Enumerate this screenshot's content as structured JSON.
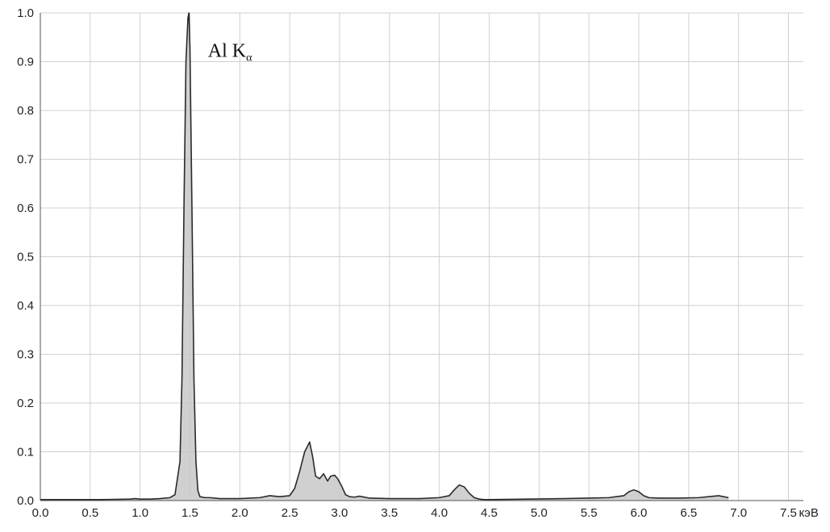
{
  "chart_data": {
    "type": "area",
    "title": "",
    "xlabel": "",
    "ylabel": "",
    "x_unit": "кэВ",
    "xlim": [
      0,
      7.65
    ],
    "ylim": [
      0,
      1.0
    ],
    "grid": true,
    "xticks": [
      "0.0",
      "0.5",
      "1.0",
      "1.5",
      "2.0",
      "2.5",
      "3.0",
      "3.5",
      "4.0",
      "4.5",
      "5.0",
      "5.5",
      "6.0",
      "6.5",
      "7.0",
      "7.5"
    ],
    "yticks": [
      "0.0",
      "0.1",
      "0.2",
      "0.3",
      "0.4",
      "0.5",
      "0.6",
      "0.7",
      "0.8",
      "0.9",
      "1.0"
    ],
    "annotation": {
      "main": "Al K",
      "subscript": "α",
      "x": 1.68,
      "y": 0.91
    },
    "colors": {
      "line": "#2a2a2a",
      "fill": "#c8c8c8",
      "grid": "#d0d0d0"
    },
    "series": [
      {
        "x": [
          0.0,
          0.3,
          0.6,
          0.9,
          0.95,
          1.0,
          1.1,
          1.2,
          1.3,
          1.35,
          1.4,
          1.42,
          1.44,
          1.46,
          1.48,
          1.49,
          1.5,
          1.52,
          1.54,
          1.56,
          1.58,
          1.6,
          1.65,
          1.7,
          1.8,
          2.0,
          2.2,
          2.3,
          2.4,
          2.5,
          2.55,
          2.6,
          2.65,
          2.7,
          2.73,
          2.76,
          2.8,
          2.84,
          2.88,
          2.91,
          2.95,
          2.98,
          3.02,
          3.06,
          3.1,
          3.15,
          3.2,
          3.3,
          3.5,
          3.8,
          4.0,
          4.1,
          4.15,
          4.2,
          4.25,
          4.3,
          4.35,
          4.4,
          4.45,
          4.5,
          5.25,
          5.5,
          5.7,
          5.85,
          5.9,
          5.95,
          6.0,
          6.05,
          6.1,
          6.2,
          6.4,
          6.6,
          6.75,
          6.8,
          6.85,
          6.9
        ],
        "y": [
          0.002,
          0.002,
          0.002,
          0.003,
          0.004,
          0.003,
          0.003,
          0.004,
          0.006,
          0.012,
          0.08,
          0.25,
          0.6,
          0.9,
          0.99,
          1.0,
          0.93,
          0.6,
          0.25,
          0.08,
          0.02,
          0.008,
          0.006,
          0.006,
          0.004,
          0.004,
          0.006,
          0.01,
          0.008,
          0.01,
          0.025,
          0.06,
          0.1,
          0.12,
          0.09,
          0.05,
          0.045,
          0.055,
          0.04,
          0.05,
          0.052,
          0.045,
          0.03,
          0.012,
          0.008,
          0.007,
          0.009,
          0.005,
          0.004,
          0.004,
          0.006,
          0.01,
          0.022,
          0.032,
          0.028,
          0.015,
          0.006,
          0.003,
          0.002,
          0.002,
          0.004,
          0.005,
          0.006,
          0.01,
          0.018,
          0.022,
          0.018,
          0.01,
          0.006,
          0.005,
          0.005,
          0.006,
          0.009,
          0.01,
          0.008,
          0.006
        ]
      }
    ]
  }
}
